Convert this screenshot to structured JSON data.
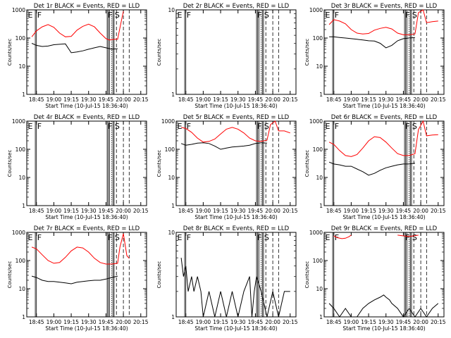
{
  "figure": {
    "ylabel": "Counts/sec",
    "xlabel": "Start Time (10-Jul-15 18:36:40)",
    "x_ticks": [
      "18:45",
      "19:00",
      "19:15",
      "19:30",
      "19:45",
      "20:00",
      "20:15"
    ],
    "y_ticks": [
      "1",
      "10",
      "100",
      "1000"
    ],
    "markers": {
      "E": "E",
      "F": "F",
      "S": "S"
    },
    "colors": {
      "events": "#000000",
      "lld": "#ff0000",
      "axes": "#000000",
      "vlines": "#000000"
    }
  },
  "chart_data": [
    {
      "type": "line",
      "title": "Det 1r BLACK = Events, RED = LLD",
      "xlim": [
        "18:36:40",
        "20:20"
      ],
      "ylim": [
        1,
        1000
      ],
      "yscale": "log",
      "series": [
        {
          "color": "#ff0000",
          "x": [
            "18:41",
            "18:45",
            "18:50",
            "18:55",
            "19:00",
            "19:05",
            "19:10",
            "19:15",
            "19:20",
            "19:25",
            "19:30",
            "19:35",
            "19:40",
            "19:45",
            "19:48",
            "19:52",
            "19:55",
            "19:57",
            "20:00"
          ],
          "y": [
            110,
            180,
            250,
            300,
            240,
            150,
            110,
            115,
            190,
            260,
            310,
            250,
            150,
            95,
            85,
            90,
            90,
            230,
            900
          ]
        },
        {
          "color": "#000000",
          "x": [
            "18:41",
            "18:45",
            "18:50",
            "18:55",
            "19:00",
            "19:05",
            "19:10",
            "19:15",
            "19:20",
            "19:25",
            "19:30",
            "19:35",
            "19:40",
            "19:45",
            "19:50",
            "19:55"
          ],
          "y": [
            65,
            55,
            50,
            52,
            58,
            60,
            62,
            30,
            32,
            35,
            40,
            45,
            50,
            45,
            40,
            42
          ]
        }
      ]
    },
    {
      "type": "line",
      "title": "Det 2r BLACK = Events, RED = LLD",
      "xlim": [
        "18:36:40",
        "20:20"
      ],
      "ylim": [
        1,
        10
      ],
      "yscale": "log",
      "series": []
    },
    {
      "type": "line",
      "title": "Det 3r BLACK = Events, RED = LLD",
      "xlim": [
        "18:36:40",
        "20:20"
      ],
      "ylim": [
        1,
        1000
      ],
      "yscale": "log",
      "series": [
        {
          "color": "#ff0000",
          "x": [
            "18:41",
            "18:45",
            "18:50",
            "18:55",
            "19:00",
            "19:05",
            "19:10",
            "19:15",
            "19:20",
            "19:25",
            "19:30",
            "19:35",
            "19:40",
            "19:45",
            "19:50",
            "19:55",
            "19:58",
            "20:02",
            "20:05",
            "20:10",
            "20:15"
          ],
          "y": [
            300,
            450,
            400,
            320,
            200,
            150,
            140,
            145,
            190,
            220,
            240,
            210,
            150,
            130,
            130,
            140,
            800,
            1100,
            350,
            380,
            400
          ]
        },
        {
          "color": "#000000",
          "x": [
            "18:41",
            "18:45",
            "18:50",
            "18:55",
            "19:00",
            "19:05",
            "19:10",
            "19:15",
            "19:20",
            "19:25",
            "19:30",
            "19:35",
            "19:40",
            "19:45",
            "19:50",
            "19:55"
          ],
          "y": [
            110,
            110,
            105,
            100,
            95,
            90,
            85,
            80,
            78,
            65,
            45,
            55,
            80,
            95,
            100,
            105
          ]
        }
      ]
    },
    {
      "type": "line",
      "title": "Det 4r BLACK = Events, RED = LLD",
      "xlim": [
        "18:36:40",
        "20:20"
      ],
      "ylim": [
        1,
        1000
      ],
      "yscale": "log",
      "series": []
    },
    {
      "type": "line",
      "title": "Det 5r BLACK = Events, RED = LLD",
      "xlim": [
        "18:36:40",
        "20:20"
      ],
      "ylim": [
        1,
        1000
      ],
      "yscale": "log",
      "series": [
        {
          "color": "#ff0000",
          "x": [
            "18:41",
            "18:45",
            "18:50",
            "18:55",
            "19:00",
            "19:05",
            "19:10",
            "19:15",
            "19:20",
            "19:25",
            "19:30",
            "19:35",
            "19:40",
            "19:45",
            "19:50",
            "19:55",
            "19:58",
            "20:02",
            "20:05",
            "20:10",
            "20:15"
          ],
          "y": [
            600,
            550,
            400,
            250,
            180,
            190,
            230,
            350,
            520,
            600,
            520,
            380,
            250,
            200,
            190,
            210,
            750,
            1050,
            450,
            450,
            380
          ]
        },
        {
          "color": "#000000",
          "x": [
            "18:41",
            "18:45",
            "18:50",
            "18:55",
            "19:00",
            "19:05",
            "19:10",
            "19:15",
            "19:20",
            "19:25",
            "19:30",
            "19:35",
            "19:40",
            "19:45",
            "19:50",
            "19:55"
          ],
          "y": [
            160,
            140,
            150,
            165,
            170,
            160,
            130,
            100,
            110,
            120,
            125,
            130,
            140,
            160,
            170,
            165
          ]
        }
      ]
    },
    {
      "type": "line",
      "title": "Det 6r BLACK = Events, RED = LLD",
      "xlim": [
        "18:36:40",
        "20:20"
      ],
      "ylim": [
        1,
        1000
      ],
      "yscale": "log",
      "series": [
        {
          "color": "#ff0000",
          "x": [
            "18:41",
            "18:45",
            "18:50",
            "18:55",
            "19:00",
            "19:05",
            "19:10",
            "19:15",
            "19:20",
            "19:25",
            "19:30",
            "19:35",
            "19:40",
            "19:45",
            "19:50",
            "19:55",
            "19:58",
            "20:02",
            "20:05",
            "20:10",
            "20:15"
          ],
          "y": [
            180,
            150,
            90,
            60,
            55,
            65,
            110,
            200,
            280,
            260,
            180,
            110,
            70,
            60,
            60,
            70,
            500,
            1000,
            300,
            320,
            330
          ]
        },
        {
          "color": "#000000",
          "x": [
            "18:41",
            "18:45",
            "18:50",
            "18:55",
            "19:00",
            "19:05",
            "19:10",
            "19:15",
            "19:20",
            "19:25",
            "19:30",
            "19:35",
            "19:40",
            "19:45",
            "19:50",
            "19:55"
          ],
          "y": [
            35,
            30,
            28,
            25,
            25,
            20,
            16,
            12,
            14,
            18,
            22,
            25,
            28,
            30,
            30,
            32
          ]
        }
      ]
    },
    {
      "type": "line",
      "title": "Det 7r BLACK = Events, RED = LLD",
      "xlim": [
        "18:36:40",
        "20:20"
      ],
      "ylim": [
        1,
        1000
      ],
      "yscale": "log",
      "series": [
        {
          "color": "#ff0000",
          "x": [
            "18:41",
            "18:45",
            "18:50",
            "18:55",
            "19:00",
            "19:05",
            "19:10",
            "19:15",
            "19:20",
            "19:25",
            "19:30",
            "19:35",
            "19:40",
            "19:45",
            "19:50",
            "19:55",
            "19:57",
            "20:00",
            "20:03",
            "20:05"
          ],
          "y": [
            300,
            260,
            160,
            100,
            80,
            85,
            130,
            220,
            300,
            280,
            200,
            120,
            85,
            75,
            75,
            80,
            300,
            900,
            150,
            120
          ]
        },
        {
          "color": "#000000",
          "x": [
            "18:41",
            "18:45",
            "18:50",
            "18:55",
            "19:00",
            "19:05",
            "19:10",
            "19:15",
            "19:20",
            "19:25",
            "19:30",
            "19:35",
            "19:40",
            "19:45",
            "19:50",
            "19:55"
          ],
          "y": [
            28,
            25,
            20,
            18,
            18,
            17,
            16,
            15,
            17,
            18,
            19,
            20,
            20,
            22,
            25,
            28
          ]
        }
      ]
    },
    {
      "type": "line",
      "title": "Det 8r BLACK = Events, RED = LLD",
      "xlim": [
        "18:36:40",
        "20:20"
      ],
      "ylim": [
        1,
        10
      ],
      "yscale": "log",
      "series": [
        {
          "color": "#000000",
          "x": [
            "18:41",
            "18:43",
            "18:45",
            "18:47",
            "18:50",
            "18:52",
            "18:55",
            "18:58",
            "19:00",
            "19:05",
            "19:10",
            "19:15",
            "19:20",
            "19:25",
            "19:30",
            "19:35",
            "19:40",
            "19:42",
            "19:44",
            "19:46",
            "19:50",
            "19:55",
            "20:00",
            "20:05",
            "20:10",
            "20:15"
          ],
          "y": [
            5,
            3,
            4,
            2,
            3,
            2,
            3,
            2,
            1,
            2,
            1,
            2,
            1,
            2,
            1,
            2,
            3,
            1,
            2,
            3,
            2,
            1,
            2,
            1,
            2,
            2
          ]
        }
      ]
    },
    {
      "type": "line",
      "title": "Det 9r BLACK = Events, RED = LLD",
      "xlim": [
        "18:36:40",
        "20:20"
      ],
      "ylim": [
        1,
        1000
      ],
      "yscale": "log",
      "series": [
        {
          "color": "#ff0000",
          "x": [
            "18:45",
            "18:48",
            "18:52",
            "18:55",
            "18:58",
            "19:00"
          ],
          "y": [
            750,
            650,
            600,
            620,
            700,
            800
          ]
        },
        {
          "color": "#ff0000",
          "x": [
            "19:40",
            "19:45",
            "19:50",
            "19:55",
            "19:58"
          ],
          "y": [
            800,
            750,
            720,
            760,
            800
          ]
        },
        {
          "color": "#000000",
          "x": [
            "18:41",
            "18:45",
            "18:50",
            "18:55",
            "19:00",
            "19:05",
            "19:10",
            "19:15",
            "19:20",
            "19:25",
            "19:28",
            "19:30",
            "19:33",
            "19:35",
            "19:40",
            "19:45",
            "19:50",
            "19:55",
            "20:00",
            "20:05",
            "20:10",
            "20:15"
          ],
          "y": [
            3,
            2,
            1,
            2,
            1,
            1,
            2,
            3,
            4,
            5,
            6,
            5,
            4,
            3,
            2,
            1,
            2,
            1,
            2,
            1,
            2,
            3
          ]
        }
      ]
    }
  ]
}
